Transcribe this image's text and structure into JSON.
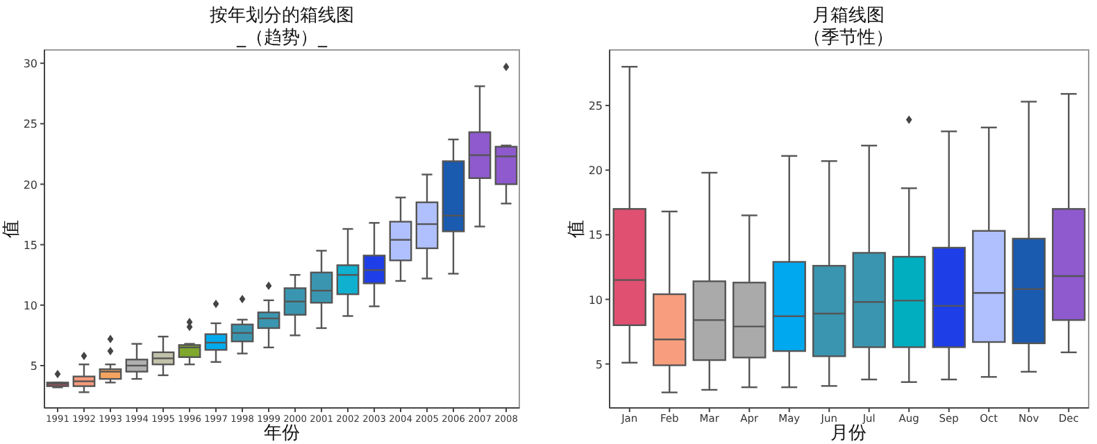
{
  "chart_data": [
    {
      "type": "box",
      "title": "按年划分的箱线图",
      "subtitle": "_（趋势）_",
      "xlabel": "年份",
      "ylabel": "值",
      "categories": [
        "1991",
        "1992",
        "1993",
        "1994",
        "1995",
        "1996",
        "1997",
        "1998",
        "1999",
        "2000",
        "2001",
        "2002",
        "2003",
        "2004",
        "2005",
        "2006",
        "2007",
        "2008"
      ],
      "colors": [
        "#b04d5f",
        "#f79a7b",
        "#f4a460",
        "#b0b0b0",
        "#c2c2aa",
        "#7fa82d",
        "#00aaee",
        "#3a96b0",
        "#3a96b0",
        "#3a96b0",
        "#3a96b0",
        "#10b0d0",
        "#1e3ee8",
        "#b0c0ff",
        "#b0c0ff",
        "#1a5aaf",
        "#8e5acd",
        "#8e5acd"
      ],
      "boxes": [
        {
          "low": 3.2,
          "q1": 3.3,
          "median": 3.5,
          "q3": 3.6,
          "high": 3.6,
          "outliers": [
            4.3
          ]
        },
        {
          "low": 2.8,
          "q1": 3.3,
          "median": 3.7,
          "q3": 4.1,
          "high": 5.1,
          "outliers": [
            5.8
          ]
        },
        {
          "low": 3.6,
          "q1": 3.9,
          "median": 4.5,
          "q3": 4.7,
          "high": 5.1,
          "outliers": [
            6.2,
            7.2
          ]
        },
        {
          "low": 3.9,
          "q1": 4.5,
          "median": 5.0,
          "q3": 5.5,
          "high": 6.8
        },
        {
          "low": 4.2,
          "q1": 5.1,
          "median": 5.6,
          "q3": 6.1,
          "high": 7.4
        },
        {
          "low": 5.1,
          "q1": 5.7,
          "median": 6.5,
          "q3": 6.7,
          "high": 6.8,
          "outliers": [
            8.2,
            8.6
          ]
        },
        {
          "low": 5.3,
          "q1": 6.3,
          "median": 6.9,
          "q3": 7.6,
          "high": 8.5,
          "outliers": [
            10.1
          ]
        },
        {
          "low": 6.0,
          "q1": 7.0,
          "median": 7.7,
          "q3": 8.4,
          "high": 8.8,
          "outliers": [
            10.5
          ]
        },
        {
          "low": 6.5,
          "q1": 8.1,
          "median": 8.9,
          "q3": 9.4,
          "high": 10.4,
          "outliers": [
            11.6
          ]
        },
        {
          "low": 7.5,
          "q1": 9.2,
          "median": 10.3,
          "q3": 11.4,
          "high": 12.5
        },
        {
          "low": 8.1,
          "q1": 10.2,
          "median": 11.2,
          "q3": 12.7,
          "high": 14.5
        },
        {
          "low": 9.1,
          "q1": 10.9,
          "median": 12.5,
          "q3": 13.3,
          "high": 16.3
        },
        {
          "low": 9.9,
          "q1": 11.8,
          "median": 12.9,
          "q3": 14.1,
          "high": 16.8
        },
        {
          "low": 12.0,
          "q1": 13.7,
          "median": 15.4,
          "q3": 16.9,
          "high": 18.9
        },
        {
          "low": 12.2,
          "q1": 14.7,
          "median": 16.7,
          "q3": 18.5,
          "high": 20.8
        },
        {
          "low": 12.6,
          "q1": 16.1,
          "median": 17.4,
          "q3": 21.9,
          "high": 23.7
        },
        {
          "low": 16.5,
          "q1": 20.5,
          "median": 22.4,
          "q3": 24.3,
          "high": 28.1
        },
        {
          "low": 18.4,
          "q1": 20.0,
          "median": 22.3,
          "q3": 23.1,
          "high": 23.2,
          "outliers": [
            29.7
          ]
        }
      ],
      "ylim": [
        1.5,
        31.1
      ],
      "yticks": [
        5,
        10,
        15,
        20,
        25,
        30
      ],
      "marker": "diamond"
    },
    {
      "type": "box",
      "title": "月箱线图",
      "subtitle": "（季节性）",
      "xlabel": "月份",
      "ylabel": "值",
      "categories": [
        "Jan",
        "Feb",
        "Mar",
        "Apr",
        "May",
        "Jun",
        "Jul",
        "Aug",
        "Sep",
        "Oct",
        "Nov",
        "Dec"
      ],
      "colors": [
        "#e05070",
        "#f89e7e",
        "#aaaaaa",
        "#aaaaaa",
        "#00a8f0",
        "#3a96b0",
        "#3a96b0",
        "#00aec0",
        "#1e3ee8",
        "#b0c0ff",
        "#1a5aaf",
        "#8e5acd"
      ],
      "boxes": [
        {
          "low": 5.1,
          "q1": 8.0,
          "median": 11.5,
          "q3": 17.0,
          "high": 28.0
        },
        {
          "low": 2.8,
          "q1": 4.9,
          "median": 6.9,
          "q3": 10.4,
          "high": 16.8
        },
        {
          "low": 3.0,
          "q1": 5.3,
          "median": 8.4,
          "q3": 11.4,
          "high": 19.8
        },
        {
          "low": 3.2,
          "q1": 5.5,
          "median": 7.9,
          "q3": 11.3,
          "high": 16.5
        },
        {
          "low": 3.2,
          "q1": 6.0,
          "median": 8.7,
          "q3": 12.9,
          "high": 21.1
        },
        {
          "low": 3.3,
          "q1": 5.6,
          "median": 8.9,
          "q3": 12.6,
          "high": 20.7
        },
        {
          "low": 3.8,
          "q1": 6.3,
          "median": 9.8,
          "q3": 13.6,
          "high": 21.9
        },
        {
          "low": 3.6,
          "q1": 6.3,
          "median": 9.9,
          "q3": 13.3,
          "high": 18.6,
          "outliers": [
            23.9
          ]
        },
        {
          "low": 3.8,
          "q1": 6.3,
          "median": 9.5,
          "q3": 14.0,
          "high": 23.0
        },
        {
          "low": 4.0,
          "q1": 6.7,
          "median": 10.5,
          "q3": 15.3,
          "high": 23.3
        },
        {
          "low": 4.4,
          "q1": 6.6,
          "median": 10.8,
          "q3": 14.7,
          "high": 25.3
        },
        {
          "low": 5.9,
          "q1": 8.4,
          "median": 11.8,
          "q3": 17.0,
          "high": 25.9
        }
      ],
      "ylim": [
        1.6,
        29.3
      ],
      "yticks": [
        5,
        10,
        15,
        20,
        25
      ],
      "marker": "diamond"
    }
  ]
}
